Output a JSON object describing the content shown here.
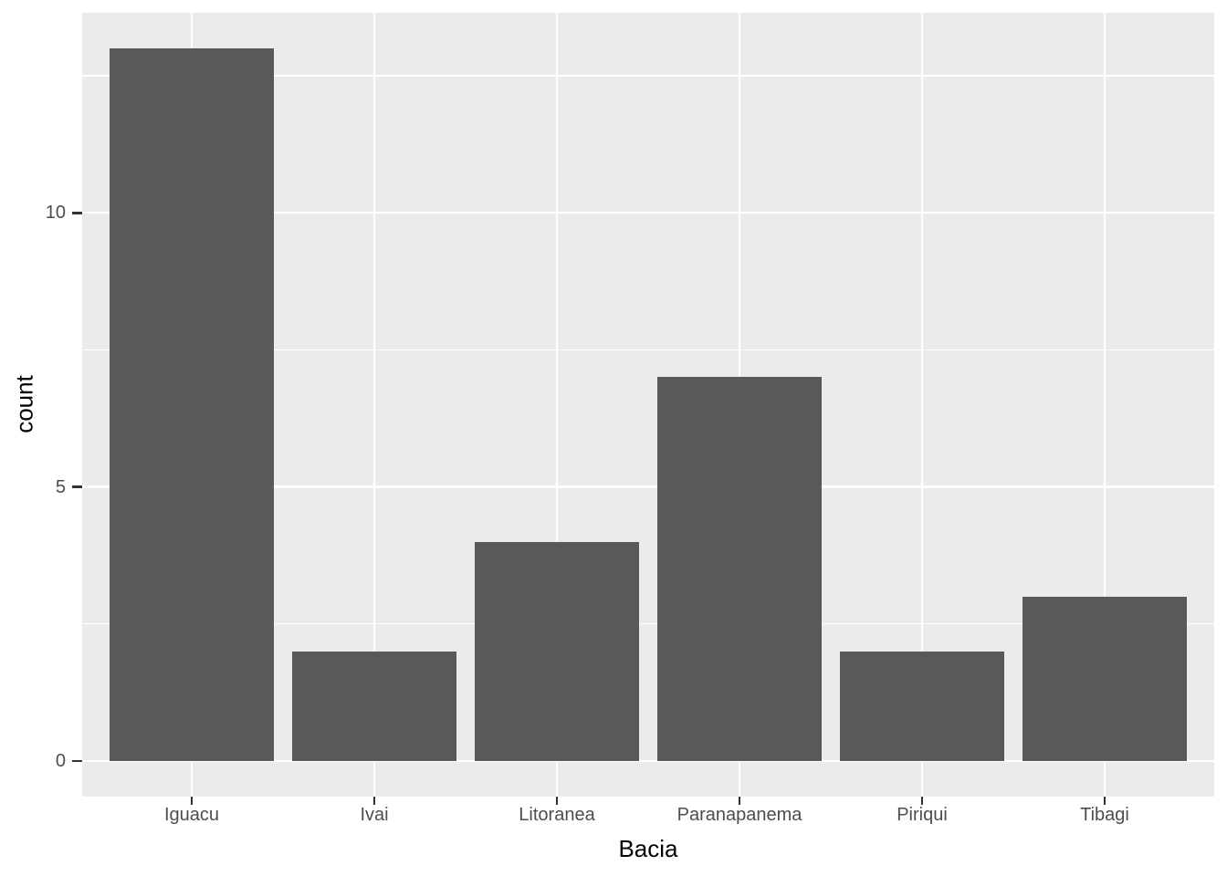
{
  "chart_data": {
    "type": "bar",
    "title": "",
    "xlabel": "Bacia",
    "ylabel": "count",
    "categories": [
      "Iguacu",
      "Ivai",
      "Litoranea",
      "Paranapanema",
      "Piriqui",
      "Tibagi"
    ],
    "values": [
      13,
      2,
      4,
      7,
      2,
      3
    ],
    "ylim": [
      0,
      13
    ],
    "y_major_ticks": [
      0,
      5,
      10
    ],
    "y_minor_ticks": [
      2.5,
      7.5,
      12.5
    ],
    "x_tick_labels": [
      "Iguacu",
      "Ivai",
      "Litoranea",
      "Paranapanema",
      "Piriqui",
      "Tibagi"
    ],
    "grid": "on",
    "legend_position": "none",
    "theme": "ggplot2-theme-grey",
    "colors": {
      "bar_fill": "#595959",
      "panel_background": "#EBEBEB",
      "grid_major": "#FFFFFF",
      "grid_minor": "#FFFFFF",
      "tick_label": "#4D4D4D",
      "tick_mark": "#333333",
      "axis_title": "#000000",
      "figure_background": "#FFFFFF"
    }
  }
}
